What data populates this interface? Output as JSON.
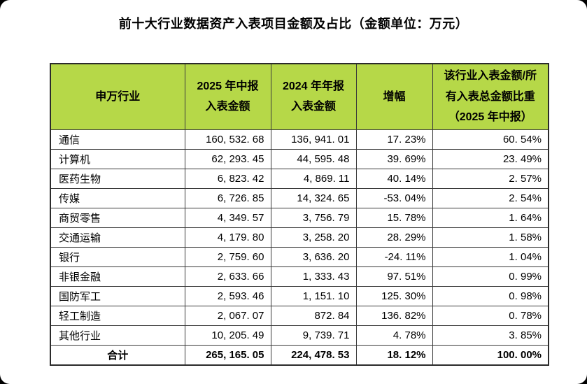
{
  "page": {
    "title": "前十大行业数据资产入表项目金额及占比（金额单位：万元）"
  },
  "colors": {
    "page_bg": "#000000",
    "card_bg": "#ffffff",
    "header_bg": "#b6d848",
    "table_border": "#3a3a3a",
    "text": "#000000"
  },
  "table": {
    "columns": [
      {
        "label": "申万行业"
      },
      {
        "label": "2025 年中报\n入表金额"
      },
      {
        "label": "2024 年年报\n入表金额"
      },
      {
        "label": "增幅"
      },
      {
        "label": "该行业入表金额/所\n有入表总金额比重\n（2025 年中报）"
      }
    ],
    "rows": [
      {
        "industry": "通信",
        "amount_2025h1": "160, 532. 68",
        "amount_2024fy": "136, 941. 01",
        "growth": "17. 23%",
        "share": "60. 54%"
      },
      {
        "industry": "计算机",
        "amount_2025h1": "62, 293. 45",
        "amount_2024fy": "44, 595. 48",
        "growth": "39. 69%",
        "share": "23. 49%"
      },
      {
        "industry": "医药生物",
        "amount_2025h1": "6, 823. 42",
        "amount_2024fy": "4, 869. 11",
        "growth": "40. 14%",
        "share": "2. 57%"
      },
      {
        "industry": "传媒",
        "amount_2025h1": "6, 726. 85",
        "amount_2024fy": "14, 324. 65",
        "growth": "-53. 04%",
        "share": "2. 54%"
      },
      {
        "industry": "商贸零售",
        "amount_2025h1": "4, 349. 57",
        "amount_2024fy": "3, 756. 79",
        "growth": "15. 78%",
        "share": "1. 64%"
      },
      {
        "industry": "交通运输",
        "amount_2025h1": "4, 179. 80",
        "amount_2024fy": "3, 258. 20",
        "growth": "28. 29%",
        "share": "1. 58%"
      },
      {
        "industry": "银行",
        "amount_2025h1": "2, 759. 60",
        "amount_2024fy": "3, 636. 20",
        "growth": "-24. 11%",
        "share": "1. 04%"
      },
      {
        "industry": "非银金融",
        "amount_2025h1": "2, 633. 66",
        "amount_2024fy": "1, 333. 43",
        "growth": "97. 51%",
        "share": "0. 99%"
      },
      {
        "industry": "国防军工",
        "amount_2025h1": "2, 593. 46",
        "amount_2024fy": "1, 151. 10",
        "growth": "125. 30%",
        "share": "0. 98%"
      },
      {
        "industry": "轻工制造",
        "amount_2025h1": "2, 067. 07",
        "amount_2024fy": "872. 84",
        "growth": "136. 82%",
        "share": "0. 78%"
      },
      {
        "industry": "其他行业",
        "amount_2025h1": "10, 205. 49",
        "amount_2024fy": "9, 739. 71",
        "growth": "4. 78%",
        "share": "3. 85%"
      }
    ],
    "total_row": {
      "label": "合计",
      "amount_2025h1": "265, 165. 05",
      "amount_2024fy": "224, 478. 53",
      "growth": "18. 12%",
      "share": "100. 00%"
    }
  },
  "chart_data": {
    "type": "table",
    "title": "前十大行业数据资产入表项目金额及占比（金额单位：万元）",
    "columns": [
      "申万行业",
      "2025年中报入表金额",
      "2024年年报入表金额",
      "增幅",
      "该行业入表金额/所有入表总金额比重（2025年中报）"
    ],
    "rows": [
      [
        "通信",
        160532.68,
        136941.01,
        "17.23%",
        "60.54%"
      ],
      [
        "计算机",
        62293.45,
        44595.48,
        "39.69%",
        "23.49%"
      ],
      [
        "医药生物",
        6823.42,
        4869.11,
        "40.14%",
        "2.57%"
      ],
      [
        "传媒",
        6726.85,
        14324.65,
        "-53.04%",
        "2.54%"
      ],
      [
        "商贸零售",
        4349.57,
        3756.79,
        "15.78%",
        "1.64%"
      ],
      [
        "交通运输",
        4179.8,
        3258.2,
        "28.29%",
        "1.58%"
      ],
      [
        "银行",
        2759.6,
        3636.2,
        "-24.11%",
        "1.04%"
      ],
      [
        "非银金融",
        2633.66,
        1333.43,
        "97.51%",
        "0.99%"
      ],
      [
        "国防军工",
        2593.46,
        1151.1,
        "125.30%",
        "0.98%"
      ],
      [
        "轻工制造",
        2067.07,
        872.84,
        "136.82%",
        "0.78%"
      ],
      [
        "其他行业",
        10205.49,
        9739.71,
        "4.78%",
        "3.85%"
      ],
      [
        "合计",
        265165.05,
        224478.53,
        "18.12%",
        "100.00%"
      ]
    ],
    "header_bg_color": "#b6d848",
    "notes": "金额单位：万元；总计行加粗；表头为黄绿色底"
  }
}
